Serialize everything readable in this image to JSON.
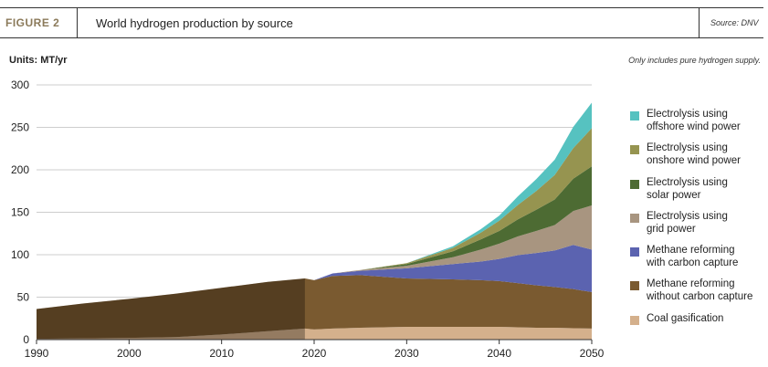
{
  "header": {
    "figure_label": "FIGURE 2",
    "title": "World hydrogen production by source",
    "source": "Source: DNV"
  },
  "units_label": "Units: MT/yr",
  "note": "Only includes pure hydrogen supply.",
  "chart_data": {
    "type": "area",
    "stacked": true,
    "x": [
      1990,
      1995,
      2000,
      2005,
      2010,
      2015,
      2019,
      2020,
      2022,
      2025,
      2030,
      2035,
      2038,
      2040,
      2042,
      2044,
      2046,
      2048,
      2050
    ],
    "xlim": [
      1990,
      2050
    ],
    "ylim": [
      0,
      300
    ],
    "xticks": [
      "1990",
      "2000",
      "2010",
      "2020",
      "2030",
      "2040",
      "2050"
    ],
    "yticks": [
      "0",
      "50",
      "100",
      "150",
      "200",
      "250",
      "300"
    ],
    "grid": "horizontal",
    "legend_position": "right",
    "historical_until": 2019,
    "series": [
      {
        "name": "Coal gasification",
        "color": "#d4b08c",
        "values": [
          1,
          1.5,
          2,
          3,
          6,
          10,
          13,
          12,
          13,
          14,
          15,
          15,
          15,
          15,
          14.5,
          14,
          14,
          13.5,
          13
        ]
      },
      {
        "name": "Methane reforming\nwithout carbon capture",
        "color": "#7a5a30",
        "values": [
          35,
          41,
          46,
          51,
          55,
          58,
          59,
          58,
          62,
          62,
          57,
          56,
          55,
          54,
          52,
          50,
          48,
          46,
          43
        ]
      },
      {
        "name": "Methane reforming\nwith carbon capture",
        "color": "#5b63b0",
        "values": [
          0,
          0,
          0,
          0,
          0,
          0,
          0,
          0,
          3,
          5,
          12,
          18,
          22,
          26,
          33,
          38,
          43,
          52,
          50
        ]
      },
      {
        "name": "Electrolysis using\ngrid power",
        "color": "#a89580",
        "values": [
          0,
          0,
          0,
          0,
          0,
          0,
          0,
          0,
          0,
          1,
          3,
          8,
          14,
          18,
          22,
          26,
          30,
          40,
          52
        ]
      },
      {
        "name": "Electrolysis using\nsolar power",
        "color": "#4d6b33",
        "values": [
          0,
          0,
          0,
          0,
          0,
          0,
          0,
          0,
          0,
          0,
          2,
          7,
          12,
          15,
          20,
          25,
          30,
          38,
          46
        ]
      },
      {
        "name": "Electrolysis using\nonshore wind power",
        "color": "#969450",
        "values": [
          0,
          0,
          0,
          0,
          0,
          0,
          0,
          0,
          0,
          0,
          1,
          4,
          8,
          12,
          17,
          22,
          29,
          36,
          45
        ]
      },
      {
        "name": "Electrolysis using\noffshore wind power",
        "color": "#56c2c0",
        "values": [
          0,
          0,
          0,
          0,
          0,
          0,
          0,
          0,
          0,
          0,
          0,
          2,
          4,
          6,
          10,
          14,
          18,
          25,
          30
        ]
      }
    ]
  }
}
